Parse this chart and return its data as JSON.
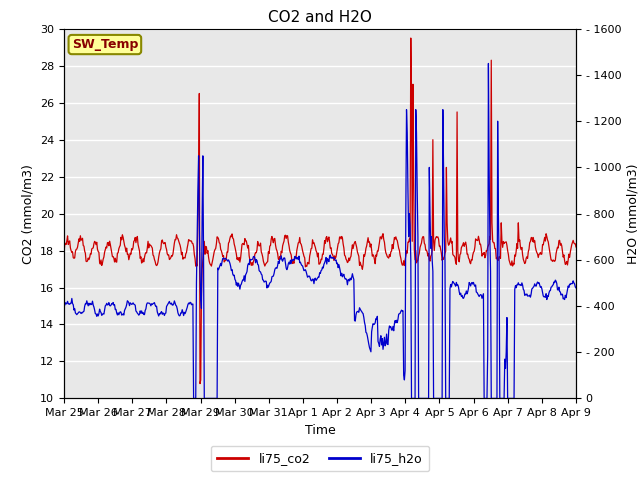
{
  "title": "CO2 and H2O",
  "xlabel": "Time",
  "ylabel_left": "CO2 (mmol/m3)",
  "ylabel_right": "H2O (mmol/m3)",
  "ylim_left": [
    10,
    30
  ],
  "ylim_right": [
    0,
    1600
  ],
  "yticks_left": [
    10,
    12,
    14,
    16,
    18,
    20,
    22,
    24,
    26,
    28,
    30
  ],
  "yticks_right": [
    0,
    200,
    400,
    600,
    800,
    1000,
    1200,
    1400,
    1600
  ],
  "color_co2": "#cc0000",
  "color_h2o": "#0000cc",
  "plot_bg_color": "#e8e8e8",
  "fig_bg_color": "#ffffff",
  "legend_label_co2": "li75_co2",
  "legend_label_h2o": "li75_h2o",
  "sw_temp_label": "SW_Temp",
  "sw_temp_bg": "#ffff99",
  "sw_temp_border": "#888800",
  "sw_temp_text_color": "#880000",
  "title_fontsize": 11,
  "label_fontsize": 9,
  "tick_fontsize": 8,
  "legend_fontsize": 9,
  "n_days": 15,
  "n_pts": 720,
  "xtick_positions": [
    0,
    1,
    2,
    3,
    4,
    5,
    6,
    7,
    8,
    9,
    10,
    11,
    12,
    13,
    14,
    15
  ],
  "xtick_labels": [
    "Mar 25",
    "Mar 26",
    "Mar 27",
    "Mar 28",
    "Mar 29",
    "Mar 30",
    "Mar 31",
    "Apr 1",
    "Apr 2",
    "Apr 3",
    "Apr 4",
    "Apr 5",
    "Apr 6",
    "Apr 7",
    "Apr 8",
    "Apr 9"
  ]
}
